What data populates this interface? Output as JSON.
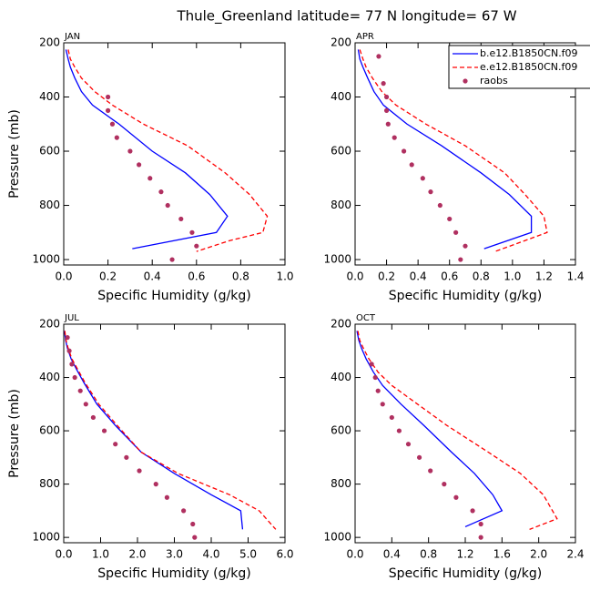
{
  "title": "Thule_Greenland  latitude= 77 N longitude= 67 W",
  "chart_data": [
    {
      "type": "line",
      "title": "JAN",
      "xlabel": "Specific Humidity (g/kg)",
      "ylabel": "Pressure (mb)",
      "xlim": [
        0,
        1
      ],
      "xticks": [
        {
          "value": 0,
          "label": "0.0"
        },
        0.2,
        0.4,
        0.6,
        0.8,
        {
          "value": 1,
          "label": "1.0"
        }
      ],
      "ylim": [
        1020,
        200
      ],
      "yticks": [
        200,
        400,
        600,
        800,
        1000
      ],
      "series": [
        {
          "color": "#0000ff",
          "style": "solid",
          "y": [
            225,
            260,
            290,
            330,
            380,
            430,
            500,
            600,
            680,
            760,
            840,
            900,
            960
          ],
          "values": [
            0.01,
            0.02,
            0.03,
            0.05,
            0.08,
            0.13,
            0.25,
            0.4,
            0.55,
            0.66,
            0.74,
            0.69,
            0.31
          ]
        },
        {
          "color": "#ff0000",
          "style": "dashed",
          "y": [
            225,
            260,
            290,
            330,
            380,
            430,
            500,
            580,
            680,
            760,
            840,
            900,
            930,
            970
          ],
          "values": [
            0.02,
            0.03,
            0.05,
            0.08,
            0.14,
            0.22,
            0.36,
            0.56,
            0.73,
            0.84,
            0.92,
            0.9,
            0.75,
            0.6
          ]
        },
        {
          "color": "#b03060",
          "style": "markers",
          "y": [
            400,
            450,
            500,
            550,
            600,
            650,
            700,
            750,
            800,
            850,
            900,
            950,
            1000
          ],
          "values": [
            0.2,
            0.2,
            0.22,
            0.24,
            0.3,
            0.34,
            0.39,
            0.44,
            0.47,
            0.53,
            0.58,
            0.6,
            0.49
          ]
        }
      ]
    },
    {
      "type": "line",
      "title": "APR",
      "xlabel": "Specific Humidity (g/kg)",
      "legend": "upper right",
      "xlim": [
        0,
        1.4
      ],
      "xticks": [
        {
          "value": 0,
          "label": "0.0"
        },
        0.2,
        0.4,
        0.6,
        0.8,
        {
          "value": 1,
          "label": "1.0"
        },
        1.2,
        1.4
      ],
      "ylim": [
        1020,
        200
      ],
      "yticks": [
        200,
        400,
        600,
        800,
        1000
      ],
      "series": [
        {
          "name": "b.e12.B1850CN.f09",
          "color": "#0000ff",
          "style": "solid",
          "y": [
            225,
            260,
            290,
            330,
            380,
            430,
            500,
            580,
            680,
            760,
            840,
            900,
            960
          ],
          "values": [
            0.02,
            0.03,
            0.05,
            0.08,
            0.12,
            0.18,
            0.33,
            0.55,
            0.8,
            0.98,
            1.12,
            1.12,
            0.82
          ]
        },
        {
          "name": "e.e12.B1850CN.f09",
          "color": "#ff0000",
          "style": "dashed",
          "y": [
            225,
            260,
            290,
            330,
            380,
            430,
            500,
            580,
            680,
            760,
            840,
            900,
            970
          ],
          "values": [
            0.03,
            0.05,
            0.07,
            0.11,
            0.17,
            0.26,
            0.45,
            0.7,
            0.95,
            1.08,
            1.2,
            1.22,
            0.89
          ]
        },
        {
          "name": "raobs",
          "color": "#b03060",
          "style": "markers",
          "y": [
            250,
            350,
            400,
            450,
            500,
            550,
            600,
            650,
            700,
            750,
            800,
            850,
            900,
            950,
            1000
          ],
          "values": [
            0.15,
            0.18,
            0.2,
            0.2,
            0.21,
            0.25,
            0.31,
            0.36,
            0.43,
            0.48,
            0.54,
            0.6,
            0.64,
            0.7,
            0.67
          ]
        }
      ]
    },
    {
      "type": "line",
      "title": "JUL",
      "xlabel": "Specific Humidity (g/kg)",
      "ylabel": "Pressure (mb)",
      "xlim": [
        0,
        6
      ],
      "xticks": [
        {
          "value": 0,
          "label": "0.0"
        },
        {
          "value": 1,
          "label": "1.0"
        },
        {
          "value": 2,
          "label": "2.0"
        },
        {
          "value": 3,
          "label": "3.0"
        },
        {
          "value": 4,
          "label": "4.0"
        },
        {
          "value": 5,
          "label": "5.0"
        },
        {
          "value": 6,
          "label": "6.0"
        }
      ],
      "ylim": [
        1020,
        200
      ],
      "yticks": [
        200,
        400,
        600,
        800,
        1000
      ],
      "series": [
        {
          "color": "#0000ff",
          "style": "solid",
          "y": [
            225,
            260,
            290,
            330,
            370,
            420,
            500,
            580,
            680,
            760,
            840,
            900,
            970
          ],
          "values": [
            0.02,
            0.05,
            0.1,
            0.2,
            0.35,
            0.55,
            0.9,
            1.4,
            2.1,
            3.0,
            4.0,
            4.8,
            4.85
          ]
        },
        {
          "color": "#ff0000",
          "style": "dashed",
          "y": [
            225,
            260,
            290,
            330,
            370,
            420,
            500,
            580,
            680,
            760,
            840,
            900,
            970
          ],
          "values": [
            0.03,
            0.06,
            0.12,
            0.22,
            0.38,
            0.58,
            0.95,
            1.45,
            2.1,
            3.1,
            4.5,
            5.3,
            5.75
          ]
        },
        {
          "color": "#b03060",
          "style": "markers",
          "y": [
            250,
            300,
            350,
            400,
            450,
            500,
            550,
            600,
            650,
            700,
            750,
            800,
            850,
            900,
            950,
            1000
          ],
          "values": [
            0.1,
            0.15,
            0.22,
            0.3,
            0.45,
            0.6,
            0.8,
            1.1,
            1.4,
            1.7,
            2.05,
            2.5,
            2.8,
            3.25,
            3.5,
            3.55
          ]
        }
      ]
    },
    {
      "type": "line",
      "title": "OCT",
      "xlabel": "Specific Humidity (g/kg)",
      "xlim": [
        0,
        2.4
      ],
      "xticks": [
        {
          "value": 0,
          "label": "0.0"
        },
        0.4,
        0.8,
        1.2,
        1.6,
        {
          "value": 2,
          "label": "2.0"
        },
        2.4
      ],
      "ylim": [
        1020,
        200
      ],
      "yticks": [
        200,
        400,
        600,
        800,
        1000
      ],
      "series": [
        {
          "color": "#0000ff",
          "style": "solid",
          "y": [
            225,
            260,
            290,
            330,
            380,
            430,
            500,
            580,
            680,
            760,
            840,
            900,
            960
          ],
          "values": [
            0.02,
            0.04,
            0.07,
            0.12,
            0.2,
            0.3,
            0.5,
            0.75,
            1.05,
            1.3,
            1.5,
            1.6,
            1.2
          ]
        },
        {
          "color": "#ff0000",
          "style": "dashed",
          "y": [
            225,
            260,
            290,
            330,
            380,
            430,
            500,
            580,
            680,
            760,
            840,
            900,
            930,
            970
          ],
          "values": [
            0.03,
            0.05,
            0.09,
            0.15,
            0.25,
            0.4,
            0.68,
            1.0,
            1.45,
            1.8,
            2.05,
            2.15,
            2.2,
            1.9
          ]
        },
        {
          "color": "#b03060",
          "style": "markers",
          "y": [
            350,
            400,
            450,
            500,
            550,
            600,
            650,
            700,
            750,
            800,
            850,
            900,
            950,
            1000
          ],
          "values": [
            0.18,
            0.22,
            0.25,
            0.3,
            0.4,
            0.48,
            0.58,
            0.7,
            0.82,
            0.97,
            1.1,
            1.28,
            1.37,
            1.37
          ]
        }
      ]
    }
  ]
}
